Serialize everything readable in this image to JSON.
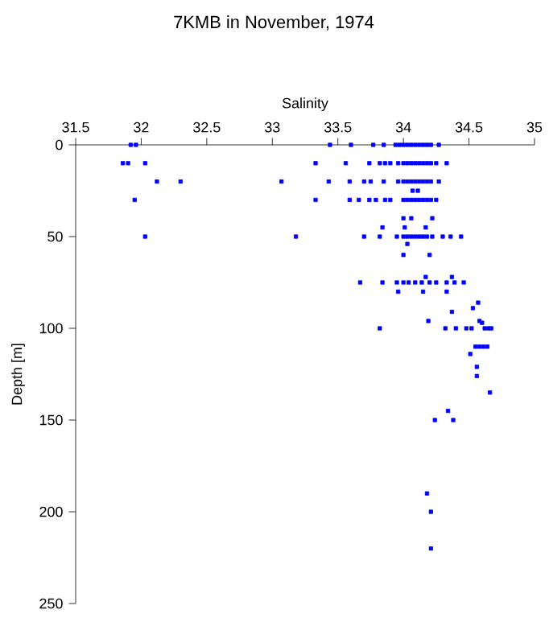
{
  "chart_data": {
    "type": "scatter",
    "title": "7KMB in November, 1974",
    "xlabel": "Salinity",
    "ylabel": "Depth [m]",
    "xlim": [
      31.5,
      35
    ],
    "xticks": [
      31.5,
      32,
      32.5,
      33,
      33.5,
      34,
      34.5,
      35
    ],
    "ylim": [
      250,
      0
    ],
    "yticks": [
      0,
      50,
      100,
      150,
      200,
      250
    ],
    "marker": "square",
    "series": [
      {
        "color": "#0000ff",
        "x": [
          31.92,
          31.96,
          33.44,
          33.6,
          33.77,
          33.85,
          33.94,
          33.97,
          34.0,
          34.03,
          34.06,
          34.09,
          34.12,
          34.15,
          34.18,
          34.21,
          34.27,
          31.86,
          31.9,
          32.03,
          33.33,
          33.56,
          33.74,
          33.82,
          33.86,
          33.9,
          33.96,
          34.0,
          34.03,
          34.06,
          34.09,
          34.12,
          34.15,
          34.18,
          34.21,
          34.25,
          34.33,
          32.12,
          32.3,
          33.07,
          33.43,
          33.59,
          33.7,
          33.75,
          33.85,
          33.96,
          34.0,
          34.03,
          34.06,
          34.09,
          34.12,
          34.15,
          34.18,
          34.21,
          34.27,
          34.07,
          34.11,
          31.95,
          33.33,
          33.59,
          33.66,
          33.74,
          33.79,
          33.86,
          33.9,
          34.0,
          34.03,
          34.06,
          34.09,
          34.12,
          34.15,
          34.18,
          34.21,
          34.25,
          34.0,
          34.06,
          34.22,
          33.84,
          34.01,
          34.17,
          32.03,
          33.18,
          33.7,
          33.82,
          33.95,
          34.0,
          34.03,
          34.06,
          34.09,
          34.12,
          34.15,
          34.18,
          34.22,
          34.3,
          34.36,
          34.44,
          34.03,
          34.0,
          34.2,
          34.17,
          34.37,
          33.67,
          33.84,
          33.95,
          34.0,
          34.04,
          34.09,
          34.14,
          34.2,
          34.25,
          34.33,
          34.39,
          34.46,
          33.96,
          34.15,
          34.33,
          34.57,
          34.53,
          34.37,
          34.19,
          34.58,
          34.6,
          33.82,
          34.32,
          34.4,
          34.48,
          34.52,
          34.62,
          34.65,
          34.67,
          34.55,
          34.58,
          34.61,
          34.64,
          34.51,
          34.56,
          34.56,
          34.66,
          34.34,
          34.24,
          34.38,
          34.18,
          34.21,
          34.21
        ],
        "values": [
          0,
          0,
          0,
          0,
          0,
          0,
          0,
          0,
          0,
          0,
          0,
          0,
          0,
          0,
          0,
          0,
          0,
          10,
          10,
          10,
          10,
          10,
          10,
          10,
          10,
          10,
          10,
          10,
          10,
          10,
          10,
          10,
          10,
          10,
          10,
          10,
          10,
          20,
          20,
          20,
          20,
          20,
          20,
          20,
          20,
          20,
          20,
          20,
          20,
          20,
          20,
          20,
          20,
          20,
          20,
          25,
          25,
          30,
          30,
          30,
          30,
          30,
          30,
          30,
          30,
          30,
          30,
          30,
          30,
          30,
          30,
          30,
          30,
          30,
          40,
          40,
          40,
          45,
          45,
          45,
          50,
          50,
          50,
          50,
          50,
          50,
          50,
          50,
          50,
          50,
          50,
          50,
          50,
          50,
          50,
          50,
          54,
          60,
          60,
          72,
          72,
          75,
          75,
          75,
          75,
          75,
          75,
          75,
          75,
          75,
          75,
          75,
          75,
          80,
          80,
          80,
          86,
          89,
          91,
          96,
          96,
          97,
          100,
          100,
          100,
          100,
          100,
          100,
          100,
          100,
          110,
          110,
          110,
          110,
          114,
          121,
          126,
          135,
          145,
          150,
          150,
          190,
          200,
          220
        ]
      }
    ]
  }
}
